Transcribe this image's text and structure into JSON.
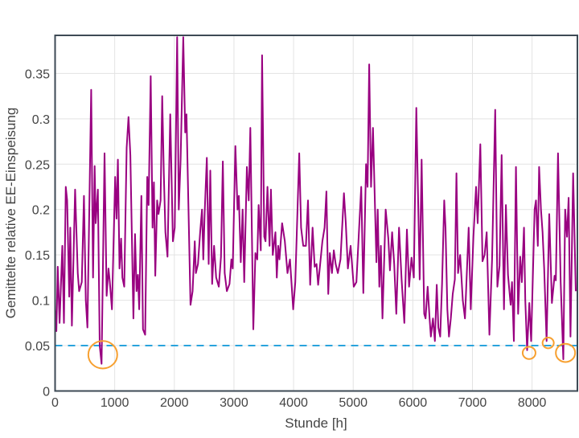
{
  "chart_data": {
    "type": "line",
    "title": "",
    "xlabel": "Stunde [h]",
    "ylabel": "Gemittelte relative EE-Einspeisung",
    "xlim": [
      0,
      8760
    ],
    "ylim": [
      0,
      0.392
    ],
    "grid": true,
    "x_ticks": [
      "0",
      "1000",
      "2000",
      "3000",
      "4000",
      "5000",
      "6000",
      "7000",
      "8000"
    ],
    "y_ticks": [
      "0",
      "0.05",
      "0.1",
      "0.15",
      "0.2",
      "0.25",
      "0.3",
      "0.35"
    ],
    "colors": {
      "series": "#990080",
      "threshold": "#29a3dc",
      "highlight": "#f7a030",
      "frame": "#3d4a55"
    },
    "threshold": {
      "y": 0.05,
      "style": "dashed"
    },
    "highlights": [
      {
        "x": 800,
        "y": 0.04
      },
      {
        "x": 7950,
        "y": 0.042
      },
      {
        "x": 8270,
        "y": 0.053
      },
      {
        "x": 8560,
        "y": 0.042
      }
    ],
    "series": [
      {
        "points": [
          [
            0,
            0.09
          ],
          [
            22,
            0.066
          ],
          [
            45,
            0.137
          ],
          [
            76,
            0.075
          ],
          [
            121,
            0.16
          ],
          [
            148,
            0.075
          ],
          [
            179,
            0.225
          ],
          [
            202,
            0.21
          ],
          [
            237,
            0.104
          ],
          [
            255,
            0.18
          ],
          [
            282,
            0.072
          ],
          [
            336,
            0.222
          ],
          [
            381,
            0.13
          ],
          [
            403,
            0.11
          ],
          [
            448,
            0.12
          ],
          [
            484,
            0.215
          ],
          [
            515,
            0.1
          ],
          [
            542,
            0.07
          ],
          [
            605,
            0.332
          ],
          [
            636,
            0.125
          ],
          [
            663,
            0.248
          ],
          [
            681,
            0.185
          ],
          [
            717,
            0.222
          ],
          [
            748,
            0.05
          ],
          [
            780,
            0.03
          ],
          [
            829,
            0.262
          ],
          [
            865,
            0.105
          ],
          [
            896,
            0.135
          ],
          [
            918,
            0.12
          ],
          [
            954,
            0.09
          ],
          [
            1008,
            0.236
          ],
          [
            1030,
            0.19
          ],
          [
            1053,
            0.255
          ],
          [
            1080,
            0.135
          ],
          [
            1107,
            0.168
          ],
          [
            1129,
            0.125
          ],
          [
            1160,
            0.115
          ],
          [
            1201,
            0.268
          ],
          [
            1232,
            0.302
          ],
          [
            1263,
            0.26
          ],
          [
            1313,
            0.08
          ],
          [
            1340,
            0.173
          ],
          [
            1366,
            0.11
          ],
          [
            1389,
            0.128
          ],
          [
            1411,
            0.09
          ],
          [
            1447,
            0.215
          ],
          [
            1474,
            0.068
          ],
          [
            1510,
            0.062
          ],
          [
            1546,
            0.236
          ],
          [
            1568,
            0.205
          ],
          [
            1604,
            0.347
          ],
          [
            1635,
            0.18
          ],
          [
            1658,
            0.23
          ],
          [
            1680,
            0.127
          ],
          [
            1711,
            0.21
          ],
          [
            1734,
            0.195
          ],
          [
            1770,
            0.21
          ],
          [
            1796,
            0.325
          ],
          [
            1823,
            0.24
          ],
          [
            1850,
            0.175
          ],
          [
            1886,
            0.148
          ],
          [
            1931,
            0.305
          ],
          [
            1976,
            0.165
          ],
          [
            2007,
            0.18
          ],
          [
            2047,
            0.39
          ],
          [
            2074,
            0.2
          ],
          [
            2106,
            0.255
          ],
          [
            2150,
            0.39
          ],
          [
            2182,
            0.285
          ],
          [
            2204,
            0.305
          ],
          [
            2271,
            0.095
          ],
          [
            2307,
            0.11
          ],
          [
            2343,
            0.165
          ],
          [
            2361,
            0.13
          ],
          [
            2397,
            0.14
          ],
          [
            2433,
            0.175
          ],
          [
            2464,
            0.2
          ],
          [
            2486,
            0.145
          ],
          [
            2509,
            0.196
          ],
          [
            2545,
            0.257
          ],
          [
            2576,
            0.14
          ],
          [
            2603,
            0.243
          ],
          [
            2634,
            0.118
          ],
          [
            2666,
            0.16
          ],
          [
            2701,
            0.125
          ],
          [
            2746,
            0.115
          ],
          [
            2782,
            0.148
          ],
          [
            2813,
            0.253
          ],
          [
            2845,
            0.13
          ],
          [
            2881,
            0.11
          ],
          [
            2925,
            0.118
          ],
          [
            2957,
            0.145
          ],
          [
            2979,
            0.135
          ],
          [
            3024,
            0.27
          ],
          [
            3060,
            0.2
          ],
          [
            3082,
            0.215
          ],
          [
            3114,
            0.142
          ],
          [
            3145,
            0.2
          ],
          [
            3172,
            0.12
          ],
          [
            3217,
            0.247
          ],
          [
            3248,
            0.21
          ],
          [
            3275,
            0.29
          ],
          [
            3324,
            0.068
          ],
          [
            3360,
            0.152
          ],
          [
            3391,
            0.145
          ],
          [
            3414,
            0.205
          ],
          [
            3450,
            0.155
          ],
          [
            3472,
            0.37
          ],
          [
            3508,
            0.17
          ],
          [
            3530,
            0.165
          ],
          [
            3562,
            0.225
          ],
          [
            3597,
            0.16
          ],
          [
            3620,
            0.222
          ],
          [
            3651,
            0.15
          ],
          [
            3696,
            0.175
          ],
          [
            3718,
            0.125
          ],
          [
            3741,
            0.16
          ],
          [
            3763,
            0.145
          ],
          [
            3808,
            0.185
          ],
          [
            3853,
            0.165
          ],
          [
            3898,
            0.13
          ],
          [
            3939,
            0.145
          ],
          [
            3993,
            0.09
          ],
          [
            4028,
            0.12
          ],
          [
            4095,
            0.262
          ],
          [
            4126,
            0.18
          ],
          [
            4162,
            0.16
          ],
          [
            4207,
            0.16
          ],
          [
            4242,
            0.21
          ],
          [
            4278,
            0.117
          ],
          [
            4318,
            0.18
          ],
          [
            4354,
            0.137
          ],
          [
            4385,
            0.14
          ],
          [
            4412,
            0.117
          ],
          [
            4439,
            0.135
          ],
          [
            4483,
            0.165
          ],
          [
            4519,
            0.18
          ],
          [
            4550,
            0.22
          ],
          [
            4581,
            0.107
          ],
          [
            4608,
            0.152
          ],
          [
            4644,
            0.13
          ],
          [
            4675,
            0.155
          ],
          [
            4706,
            0.14
          ],
          [
            4742,
            0.13
          ],
          [
            4786,
            0.145
          ],
          [
            4844,
            0.218
          ],
          [
            4876,
            0.185
          ],
          [
            4911,
            0.135
          ],
          [
            4956,
            0.16
          ],
          [
            5009,
            0.115
          ],
          [
            5054,
            0.12
          ],
          [
            5099,
            0.18
          ],
          [
            5134,
            0.225
          ],
          [
            5170,
            0.108
          ],
          [
            5215,
            0.25
          ],
          [
            5241,
            0.225
          ],
          [
            5268,
            0.36
          ],
          [
            5299,
            0.225
          ],
          [
            5331,
            0.29
          ],
          [
            5366,
            0.2
          ],
          [
            5389,
            0.142
          ],
          [
            5411,
            0.2
          ],
          [
            5438,
            0.115
          ],
          [
            5464,
            0.16
          ],
          [
            5491,
            0.08
          ],
          [
            5545,
            0.2
          ],
          [
            5589,
            0.168
          ],
          [
            5616,
            0.133
          ],
          [
            5652,
            0.175
          ],
          [
            5687,
            0.14
          ],
          [
            5723,
            0.085
          ],
          [
            5768,
            0.18
          ],
          [
            5812,
            0.123
          ],
          [
            5857,
            0.075
          ],
          [
            5901,
            0.178
          ],
          [
            5937,
            0.115
          ],
          [
            5977,
            0.147
          ],
          [
            6017,
            0.125
          ],
          [
            6058,
            0.312
          ],
          [
            6080,
            0.24
          ],
          [
            6115,
            0.123
          ],
          [
            6147,
            0.255
          ],
          [
            6191,
            0.085
          ],
          [
            6214,
            0.08
          ],
          [
            6249,
            0.115
          ],
          [
            6281,
            0.08
          ],
          [
            6303,
            0.06
          ],
          [
            6338,
            0.08
          ],
          [
            6370,
            0.055
          ],
          [
            6401,
            0.117
          ],
          [
            6428,
            0.07
          ],
          [
            6459,
            0.06
          ],
          [
            6490,
            0.118
          ],
          [
            6526,
            0.21
          ],
          [
            6548,
            0.18
          ],
          [
            6579,
            0.09
          ],
          [
            6606,
            0.06
          ],
          [
            6637,
            0.08
          ],
          [
            6669,
            0.107
          ],
          [
            6704,
            0.123
          ],
          [
            6731,
            0.24
          ],
          [
            6758,
            0.13
          ],
          [
            6793,
            0.15
          ],
          [
            6838,
            0.1
          ],
          [
            6874,
            0.08
          ],
          [
            6936,
            0.18
          ],
          [
            6972,
            0.09
          ],
          [
            7016,
            0.17
          ],
          [
            7061,
            0.225
          ],
          [
            7088,
            0.185
          ],
          [
            7132,
            0.272
          ],
          [
            7168,
            0.143
          ],
          [
            7204,
            0.15
          ],
          [
            7239,
            0.175
          ],
          [
            7284,
            0.062
          ],
          [
            7329,
            0.145
          ],
          [
            7382,
            0.31
          ],
          [
            7418,
            0.115
          ],
          [
            7454,
            0.138
          ],
          [
            7489,
            0.26
          ],
          [
            7529,
            0.09
          ],
          [
            7561,
            0.205
          ],
          [
            7596,
            0.128
          ],
          [
            7641,
            0.095
          ],
          [
            7663,
            0.12
          ],
          [
            7694,
            0.055
          ],
          [
            7730,
            0.247
          ],
          [
            7766,
            0.085
          ],
          [
            7801,
            0.148
          ],
          [
            7828,
            0.12
          ],
          [
            7864,
            0.18
          ],
          [
            7886,
            0.1
          ],
          [
            7917,
            0.045
          ],
          [
            7953,
            0.097
          ],
          [
            7984,
            0.055
          ],
          [
            8042,
            0.2
          ],
          [
            8065,
            0.21
          ],
          [
            8096,
            0.16
          ],
          [
            8118,
            0.247
          ],
          [
            8149,
            0.2
          ],
          [
            8176,
            0.175
          ],
          [
            8203,
            0.135
          ],
          [
            8243,
            0.055
          ],
          [
            8288,
            0.195
          ],
          [
            8332,
            0.097
          ],
          [
            8377,
            0.127
          ],
          [
            8399,
            0.122
          ],
          [
            8435,
            0.262
          ],
          [
            8479,
            0.12
          ],
          [
            8524,
            0.035
          ],
          [
            8555,
            0.2
          ],
          [
            8586,
            0.17
          ],
          [
            8613,
            0.213
          ],
          [
            8644,
            0.06
          ],
          [
            8689,
            0.24
          ],
          [
            8733,
            0.11
          ]
        ]
      }
    ]
  }
}
